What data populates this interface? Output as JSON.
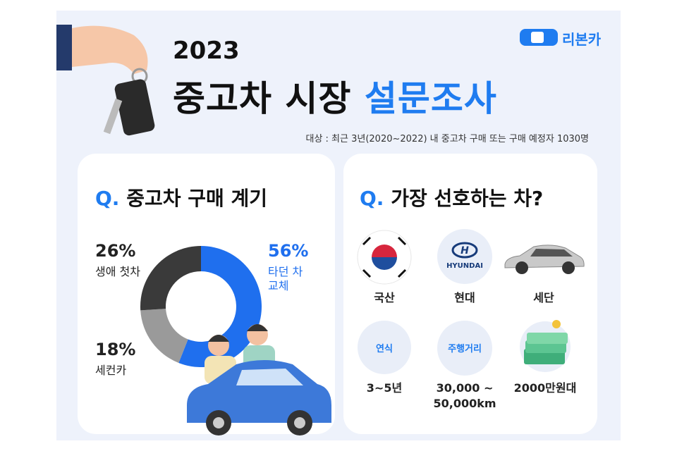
{
  "header": {
    "year": "2023",
    "title_black": "중고차 시장",
    "title_blue": "설문조사",
    "subtitle": "대상 : 최근 3년(2020~2022) 내 중고차 구매 또는 구매 예정자 1030명",
    "brand": "리본카"
  },
  "chart_data": {
    "type": "donut",
    "q_mark": "Q.",
    "title": "중고차 구매 계기",
    "categories": [
      "타던 차 교체",
      "세컨카",
      "생애 첫차"
    ],
    "values": [
      56,
      18,
      26
    ],
    "value_labels": [
      "56%",
      "18%",
      "26%"
    ],
    "colors": [
      "#1f6fee",
      "#9a9a9a",
      "#3a3a3a"
    ]
  },
  "preference": {
    "q_mark": "Q.",
    "title": "가장 선호하는 차?",
    "logo_text": "HYUNDAI",
    "items": [
      {
        "label": "국산"
      },
      {
        "label": "현대"
      },
      {
        "label": "세단"
      },
      {
        "icon_text": "연식",
        "label": "3~5년"
      },
      {
        "icon_text": "주행거리",
        "label": "30,000 ~ 50,000km"
      },
      {
        "label": "2000만원대"
      }
    ]
  }
}
